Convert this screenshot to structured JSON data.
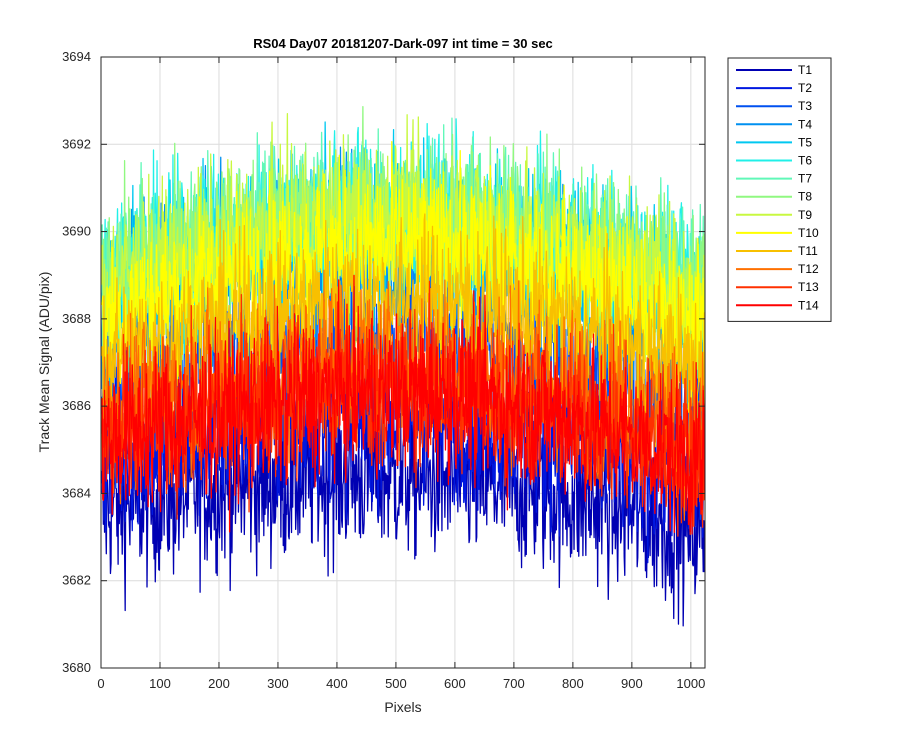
{
  "chart_data": {
    "type": "line",
    "title": "RS04 Day07 20181207-Dark-097 int time = 30 sec",
    "xlabel": "Pixels",
    "ylabel": "Track Mean Signal (ADU/pix)",
    "xlim": [
      0,
      1024
    ],
    "ylim": [
      3680,
      3694
    ],
    "xticks": [
      0,
      100,
      200,
      300,
      400,
      500,
      600,
      700,
      800,
      900,
      1000
    ],
    "yticks": [
      3680,
      3682,
      3684,
      3686,
      3688,
      3690,
      3692,
      3694
    ],
    "grid": true,
    "legend_position": "outside-top-right",
    "x_range": [
      1,
      1024
    ],
    "series": [
      {
        "name": "T1",
        "color": "#0000b3",
        "profile": [
          3683.6,
          3684.1,
          3684.4,
          3684.3,
          3683.9,
          3683.1
        ]
      },
      {
        "name": "T2",
        "color": "#0018e0",
        "profile": [
          3684.8,
          3685.4,
          3685.8,
          3685.7,
          3685.2,
          3684.3
        ]
      },
      {
        "name": "T3",
        "color": "#0050f0",
        "profile": [
          3686.5,
          3687.2,
          3687.7,
          3687.6,
          3687.0,
          3686.1
        ]
      },
      {
        "name": "T4",
        "color": "#0090f0",
        "profile": [
          3688.3,
          3689.0,
          3689.5,
          3689.4,
          3688.8,
          3687.8
        ]
      },
      {
        "name": "T5",
        "color": "#00c8f0",
        "profile": [
          3688.8,
          3689.6,
          3690.1,
          3690.0,
          3689.4,
          3688.4
        ]
      },
      {
        "name": "T6",
        "color": "#20f0e8",
        "profile": [
          3689.0,
          3689.9,
          3690.4,
          3690.3,
          3689.7,
          3688.6
        ]
      },
      {
        "name": "T7",
        "color": "#60f8b8",
        "profile": [
          3689.0,
          3689.9,
          3690.5,
          3690.4,
          3689.8,
          3688.6
        ]
      },
      {
        "name": "T8",
        "color": "#90f880",
        "profile": [
          3688.9,
          3689.8,
          3690.4,
          3690.4,
          3689.7,
          3688.5
        ]
      },
      {
        "name": "T9",
        "color": "#c8f840",
        "profile": [
          3688.7,
          3689.6,
          3690.3,
          3690.2,
          3689.6,
          3688.3
        ]
      },
      {
        "name": "T10",
        "color": "#ffff00",
        "profile": [
          3688.0,
          3688.9,
          3689.6,
          3689.6,
          3688.9,
          3687.7
        ]
      },
      {
        "name": "T11",
        "color": "#f8c000",
        "profile": [
          3687.0,
          3687.8,
          3688.4,
          3688.4,
          3687.8,
          3686.7
        ]
      },
      {
        "name": "T12",
        "color": "#ff7000",
        "profile": [
          3685.8,
          3686.5,
          3687.0,
          3687.0,
          3686.4,
          3685.4
        ]
      },
      {
        "name": "T13",
        "color": "#ff3000",
        "profile": [
          3685.3,
          3685.9,
          3686.4,
          3686.4,
          3685.8,
          3684.8
        ]
      },
      {
        "name": "T14",
        "color": "#ff0000",
        "profile": [
          3685.2,
          3685.8,
          3686.3,
          3686.3,
          3685.7,
          3684.7
        ]
      }
    ],
    "profile_x": [
      1,
      200,
      400,
      600,
      800,
      1024
    ],
    "noise_amplitude_adu": 1.3
  }
}
